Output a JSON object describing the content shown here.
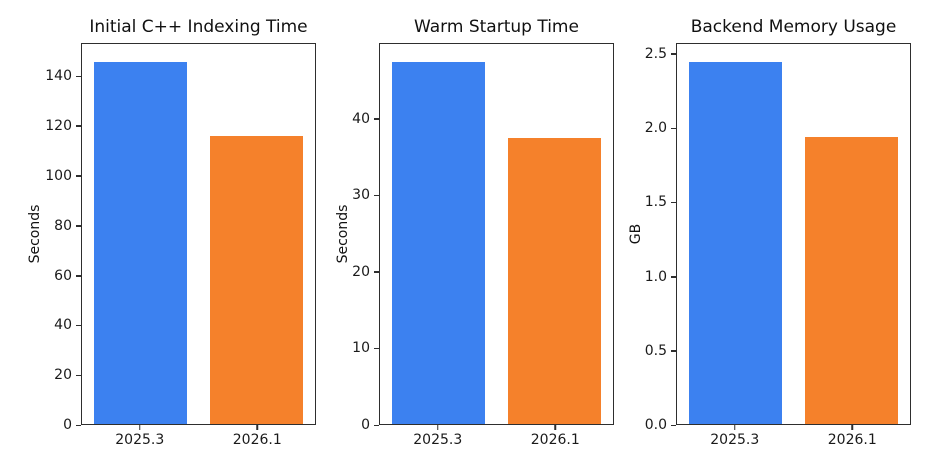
{
  "figure": {
    "background": "#ffffff"
  },
  "chart_data": [
    {
      "type": "bar",
      "title": "Initial C++ Indexing Time",
      "xlabel": "",
      "ylabel": "Seconds",
      "categories": [
        "2025.3",
        "2026.1"
      ],
      "values": [
        146,
        116
      ],
      "bar_colors": [
        "#3C81F0",
        "#F5812B"
      ],
      "ylim": [
        0,
        153.3
      ],
      "yticks": [
        0,
        20,
        40,
        60,
        80,
        100,
        120,
        140
      ],
      "ytick_labels": [
        "0",
        "20",
        "40",
        "60",
        "80",
        "100",
        "120",
        "140"
      ],
      "grid": false,
      "legend": false
    },
    {
      "type": "bar",
      "title": "Warm Startup Time",
      "xlabel": "",
      "ylabel": "Seconds",
      "categories": [
        "2025.3",
        "2026.1"
      ],
      "values": [
        47.5,
        37.6
      ],
      "bar_colors": [
        "#3C81F0",
        "#F5812B"
      ],
      "ylim": [
        0,
        49.875
      ],
      "yticks": [
        0,
        10,
        20,
        30,
        40
      ],
      "ytick_labels": [
        "0",
        "10",
        "20",
        "30",
        "40"
      ],
      "grid": false,
      "legend": false
    },
    {
      "type": "bar",
      "title": "Backend Memory Usage",
      "xlabel": "",
      "ylabel": "GB",
      "categories": [
        "2025.3",
        "2026.1"
      ],
      "values": [
        2.45,
        1.94
      ],
      "bar_colors": [
        "#3C81F0",
        "#F5812B"
      ],
      "ylim": [
        0,
        2.5725
      ],
      "yticks": [
        0,
        0.5,
        1,
        1.5,
        2,
        2.5
      ],
      "ytick_labels": [
        "0.0",
        "0.5",
        "1.0",
        "1.5",
        "2.0",
        "2.5"
      ],
      "grid": false,
      "legend": false
    }
  ]
}
